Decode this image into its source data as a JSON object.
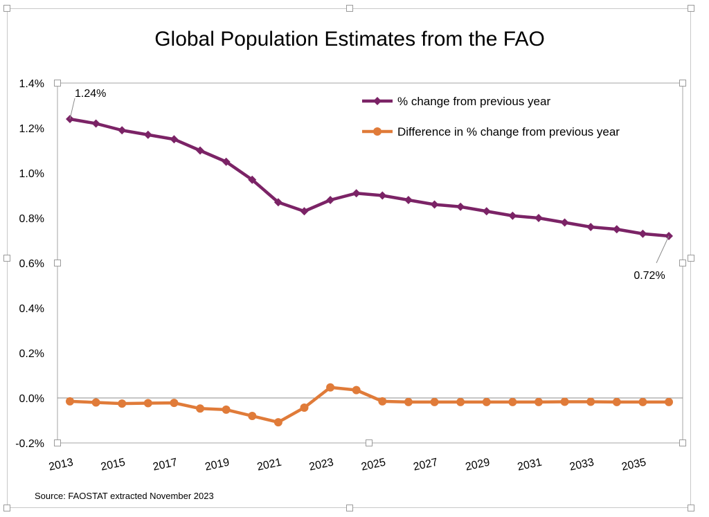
{
  "chart_data": {
    "type": "line",
    "title": "Global Population Estimates from the FAO",
    "source": "Source: FAOSTAT extracted November 2023",
    "x": [
      2013,
      2014,
      2015,
      2016,
      2017,
      2018,
      2019,
      2020,
      2021,
      2022,
      2023,
      2024,
      2025,
      2026,
      2027,
      2028,
      2029,
      2030,
      2031,
      2032,
      2033,
      2034,
      2035,
      2036
    ],
    "x_tick_labels": [
      "2013",
      "2015",
      "2017",
      "2019",
      "2021",
      "2023",
      "2025",
      "2027",
      "2029",
      "2031",
      "2033",
      "2035"
    ],
    "y_tick_labels": [
      "-0.2%",
      "0.0%",
      "0.2%",
      "0.4%",
      "0.6%",
      "0.8%",
      "1.0%",
      "1.2%",
      "1.4%"
    ],
    "ylim": [
      -0.2,
      1.4
    ],
    "series": [
      {
        "name": "% change from previous year",
        "color": "#7b2366",
        "marker": "diamond",
        "values": [
          1.24,
          1.22,
          1.19,
          1.17,
          1.15,
          1.1,
          1.05,
          0.97,
          0.87,
          0.83,
          0.88,
          0.91,
          0.9,
          0.88,
          0.86,
          0.85,
          0.83,
          0.81,
          0.8,
          0.78,
          0.76,
          0.75,
          0.73,
          0.72
        ]
      },
      {
        "name": "Difference in % change from previous year",
        "color": "#e07b39",
        "marker": "circle",
        "values": [
          -0.015,
          -0.02,
          -0.025,
          -0.023,
          -0.022,
          -0.047,
          -0.052,
          -0.08,
          -0.108,
          -0.043,
          0.047,
          0.035,
          -0.015,
          -0.018,
          -0.018,
          -0.018,
          -0.018,
          -0.018,
          -0.018,
          -0.017,
          -0.017,
          -0.018,
          -0.018,
          -0.018
        ]
      }
    ],
    "annotations": [
      {
        "text": "1.24%",
        "series": 0,
        "index": 0
      },
      {
        "text": "0.72%",
        "series": 0,
        "index": 23
      }
    ],
    "legend_position": "top-right",
    "grid": false
  }
}
